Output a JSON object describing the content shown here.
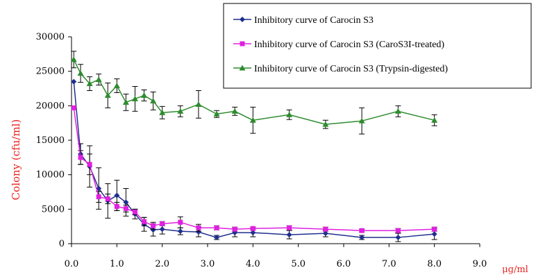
{
  "chart_data": {
    "type": "line",
    "xlabel": "μg/ml",
    "ylabel": "Colony (cfu/ml)",
    "xlim": [
      0,
      9
    ],
    "ylim": [
      0,
      30000
    ],
    "xticks": [
      "0.0",
      "1.0",
      "2.0",
      "3.0",
      "4.0",
      "5.0",
      "6.0",
      "7.0",
      "8.0",
      "9.0"
    ],
    "yticks": [
      "0",
      "5000",
      "10000",
      "15000",
      "20000",
      "25000",
      "30000"
    ],
    "grid": false,
    "legend_position": "top-right",
    "series": [
      {
        "name": "Inhibitory curve of Carocin S3",
        "color": "#1f2f8f",
        "marker": "diamond",
        "x": [
          0.05,
          0.2,
          0.4,
          0.6,
          0.8,
          1.0,
          1.2,
          1.4,
          1.6,
          1.8,
          2.0,
          2.4,
          2.8,
          3.2,
          3.6,
          4.0,
          4.8,
          5.6,
          6.4,
          7.2,
          8.0
        ],
        "y": [
          23500,
          13000,
          11200,
          8000,
          6200,
          7000,
          6000,
          4300,
          2800,
          2000,
          2100,
          1800,
          1700,
          900,
          1600,
          1600,
          1300,
          1500,
          900,
          900,
          1400
        ],
        "err": [
          0,
          1500,
          3000,
          3000,
          2500,
          2200,
          2000,
          700,
          1000,
          900,
          700,
          500,
          700,
          300,
          600,
          600,
          600,
          500,
          300,
          600,
          800
        ]
      },
      {
        "name": "Inhibitory curve of Carocin S3 (CaroS3I-treated)",
        "color": "#e020e0",
        "marker": "square",
        "x": [
          0.05,
          0.2,
          0.4,
          0.6,
          0.8,
          1.0,
          1.2,
          1.4,
          1.6,
          1.8,
          2.0,
          2.4,
          2.8,
          3.2,
          3.6,
          4.0,
          4.8,
          5.6,
          6.4,
          7.2,
          8.0
        ],
        "y": [
          19700,
          12500,
          11500,
          6800,
          6500,
          5400,
          5100,
          4600,
          3200,
          2600,
          2900,
          3100,
          2300,
          2300,
          2100,
          2200,
          2300,
          2100,
          1900,
          1900,
          2100
        ],
        "err": [
          0,
          1000,
          1500,
          800,
          700,
          600,
          500,
          400,
          600,
          500,
          300,
          800,
          500,
          300,
          300,
          200,
          300,
          300,
          200,
          300,
          300
        ]
      },
      {
        "name": "Inhibitory curve of Carocin S3 (Trypsin-digested)",
        "color": "#2e8b2e",
        "marker": "triangle",
        "x": [
          0.05,
          0.2,
          0.4,
          0.6,
          0.8,
          1.0,
          1.2,
          1.4,
          1.6,
          1.8,
          2.0,
          2.4,
          2.8,
          3.2,
          3.6,
          4.0,
          4.8,
          5.6,
          6.4,
          7.2,
          8.0
        ],
        "y": [
          26700,
          24700,
          23200,
          23800,
          21500,
          22900,
          20500,
          21000,
          21500,
          20700,
          19000,
          19200,
          20200,
          18800,
          19200,
          17900,
          18700,
          17300,
          17800,
          19200,
          17900
        ],
        "err": [
          1200,
          1300,
          1000,
          800,
          1800,
          1000,
          1200,
          1800,
          800,
          1300,
          900,
          800,
          2000,
          500,
          600,
          1900,
          700,
          600,
          1900,
          800,
          800
        ]
      }
    ]
  }
}
